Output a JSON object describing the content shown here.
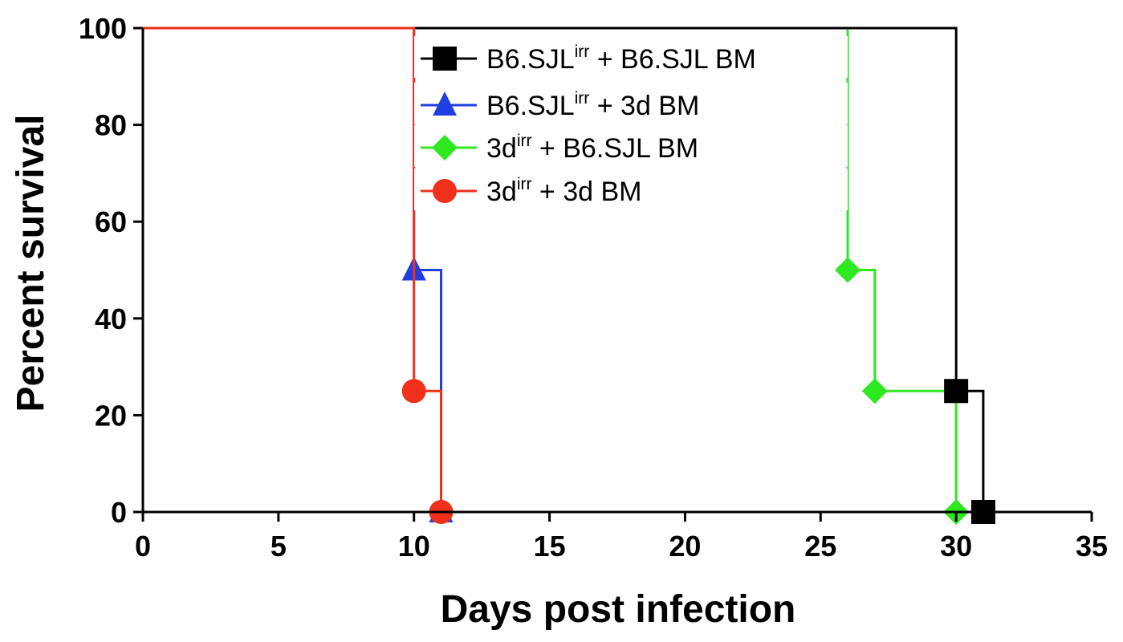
{
  "chart_data": {
    "type": "line",
    "step": true,
    "xlabel": "Days post infection",
    "ylabel": "Percent survival",
    "xlim": [
      0,
      35
    ],
    "ylim": [
      0,
      100
    ],
    "x_ticks": [
      "0",
      "5",
      "10",
      "15",
      "20",
      "25",
      "30",
      "35"
    ],
    "y_ticks": [
      "0",
      "20",
      "40",
      "60",
      "80",
      "100"
    ],
    "grid": false,
    "legend_position": "top-center",
    "series": [
      {
        "name": "B6.SJLirr + B6.SJL BM",
        "legend": {
          "base": "B6.SJL",
          "sup": "irr",
          "rest": " + B6.SJL BM"
        },
        "color": "#000000",
        "marker": "square",
        "x": [
          0,
          30,
          31
        ],
        "y": [
          100,
          25,
          0
        ]
      },
      {
        "name": "B6.SJLirr + 3d BM",
        "legend": {
          "base": "B6.SJL",
          "sup": "irr",
          "rest": " + 3d BM"
        },
        "color": "#1f3fe0",
        "marker": "triangle",
        "x": [
          0,
          10,
          11
        ],
        "y": [
          100,
          50,
          0
        ]
      },
      {
        "name": "3dirr + B6.SJL BM",
        "legend": {
          "base": "3d",
          "sup": "irr",
          "rest": " + B6.SJL BM"
        },
        "color": "#2ee820",
        "marker": "diamond",
        "x": [
          0,
          26,
          27,
          30
        ],
        "y": [
          100,
          50,
          25,
          0
        ]
      },
      {
        "name": "3dirr + 3d BM",
        "legend": {
          "base": "3d",
          "sup": "irr",
          "rest": " + 3d BM"
        },
        "color": "#f0301a",
        "marker": "circle",
        "x": [
          0,
          10,
          11
        ],
        "y": [
          100,
          25,
          0
        ]
      }
    ]
  }
}
